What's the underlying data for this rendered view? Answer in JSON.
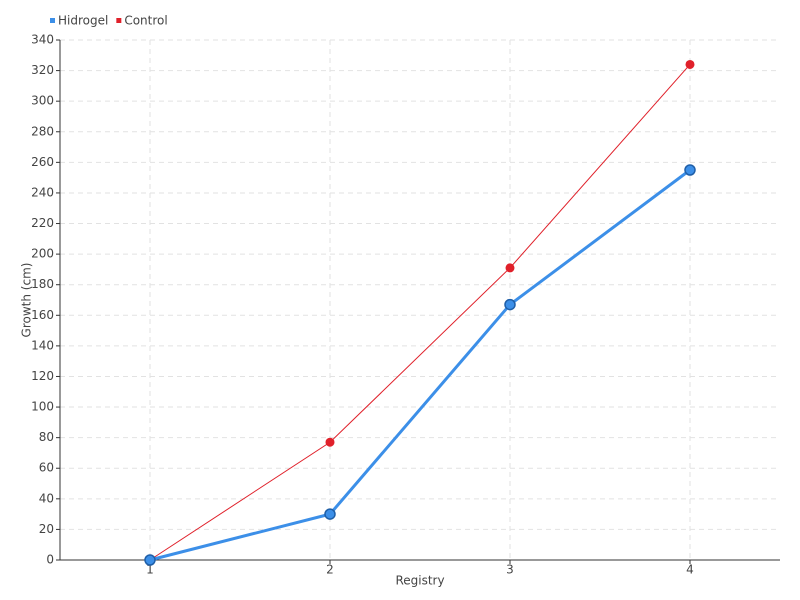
{
  "chart_data": {
    "type": "line",
    "x_label": "Registry",
    "y_label": "Growth (cm)",
    "categories": [
      "1",
      "2",
      "3",
      "4"
    ],
    "series": [
      {
        "name": "Hidrogel",
        "color": "#3c8fe8",
        "values": [
          0,
          30,
          167,
          255
        ]
      },
      {
        "name": "Control",
        "color": "#e0202a",
        "values": [
          0,
          77,
          191,
          324
        ]
      }
    ],
    "ylim": [
      0,
      340
    ],
    "yticks": [
      0,
      20,
      40,
      60,
      80,
      100,
      120,
      140,
      160,
      180,
      200,
      220,
      240,
      260,
      280,
      300,
      320,
      340
    ],
    "grid": true,
    "legend": "top-left"
  }
}
